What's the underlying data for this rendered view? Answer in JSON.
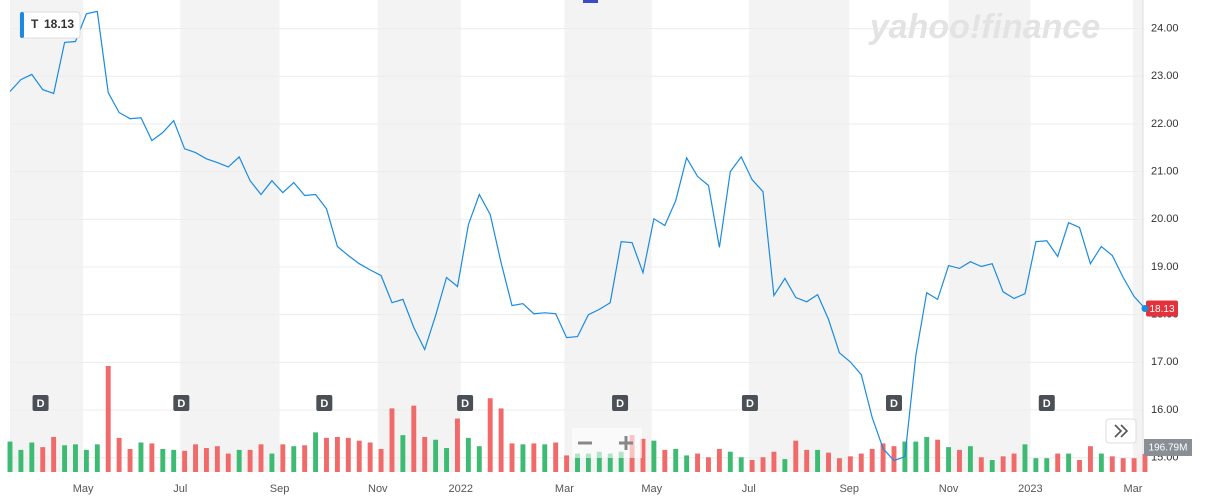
{
  "chart_data": {
    "type": "line",
    "watermark": "yahoo!finance",
    "series": [
      {
        "name": "T",
        "color": "#1a8be0",
        "values": [
          22.68,
          22.93,
          23.04,
          22.72,
          22.64,
          23.71,
          23.73,
          24.31,
          24.36,
          22.66,
          22.24,
          22.11,
          22.13,
          21.65,
          21.82,
          22.07,
          21.48,
          21.4,
          21.27,
          21.19,
          21.1,
          21.31,
          20.81,
          20.52,
          20.81,
          20.56,
          20.77,
          20.5,
          20.52,
          20.22,
          19.43,
          19.24,
          19.07,
          18.94,
          18.82,
          18.25,
          18.32,
          17.73,
          17.27,
          17.98,
          18.78,
          18.59,
          19.89,
          20.52,
          20.1,
          19.09,
          18.19,
          18.23,
          18.02,
          18.04,
          18.02,
          17.52,
          17.54,
          18.0,
          18.11,
          18.25,
          19.53,
          19.51,
          18.88,
          20.01,
          19.87,
          20.39,
          21.29,
          20.9,
          20.71,
          19.41,
          21.0,
          21.31,
          20.83,
          20.58,
          18.4,
          18.76,
          18.36,
          18.27,
          18.42,
          17.9,
          17.2,
          17.01,
          16.74,
          15.84,
          15.19,
          14.94,
          15.02,
          17.14,
          18.46,
          18.32,
          19.03,
          18.97,
          19.11,
          19.01,
          19.07,
          18.48,
          18.34,
          18.44,
          19.53,
          19.55,
          19.22,
          19.93,
          19.83,
          19.07,
          19.43,
          19.24,
          18.78,
          18.38,
          18.13
        ]
      }
    ],
    "volume": {
      "up_color": "#3dbb73",
      "down_color": "#f06a6a",
      "vlim": [
        0,
        1150
      ],
      "label": "196.79M",
      "values": [
        330,
        240,
        320,
        270,
        380,
        290,
        300,
        240,
        300,
        1150,
        370,
        250,
        320,
        310,
        250,
        240,
        230,
        300,
        260,
        280,
        200,
        240,
        240,
        300,
        200,
        300,
        280,
        290,
        430,
        370,
        380,
        370,
        340,
        320,
        250,
        690,
        400,
        720,
        380,
        350,
        260,
        580,
        370,
        280,
        800,
        690,
        310,
        300,
        310,
        300,
        320,
        180,
        200,
        200,
        220,
        200,
        220,
        400,
        360,
        340,
        240,
        250,
        180,
        200,
        160,
        250,
        220,
        160,
        130,
        160,
        220,
        140,
        340,
        240,
        240,
        210,
        150,
        170,
        200,
        250,
        310,
        280,
        330,
        330,
        380,
        350,
        270,
        240,
        280,
        160,
        130,
        170,
        200,
        300,
        150,
        150,
        200,
        200,
        130,
        280,
        200,
        170,
        150,
        150,
        196.79
      ]
    },
    "dividends": [
      {
        "x": 2.8,
        "label": "D"
      },
      {
        "x": 15.7,
        "label": "D"
      },
      {
        "x": 28.8,
        "label": "D"
      },
      {
        "x": 41.7,
        "label": "D"
      },
      {
        "x": 55.9,
        "label": "D"
      },
      {
        "x": 67.8,
        "label": "D"
      },
      {
        "x": 81.0,
        "label": "D"
      },
      {
        "x": 95.0,
        "label": "D"
      }
    ],
    "xlim": [
      0,
      104
    ],
    "xticks": [
      {
        "value": 6.7,
        "label": "May"
      },
      {
        "value": 15.6,
        "label": "Jul"
      },
      {
        "value": 24.7,
        "label": "Sep"
      },
      {
        "value": 33.7,
        "label": "Nov"
      },
      {
        "value": 41.3,
        "label": "2022"
      },
      {
        "value": 50.8,
        "label": "Mar"
      },
      {
        "value": 58.8,
        "label": "May"
      },
      {
        "value": 67.7,
        "label": "Jul"
      },
      {
        "value": 76.9,
        "label": "Sep"
      },
      {
        "value": 86.0,
        "label": "Nov"
      },
      {
        "value": 93.5,
        "label": "2023"
      },
      {
        "value": 102.9,
        "label": "Mar"
      }
    ],
    "ylim": [
      14.7,
      24.6
    ],
    "yticks": [
      {
        "value": 15,
        "label": "15.00"
      },
      {
        "value": 16,
        "label": "16.00"
      },
      {
        "value": 17,
        "label": "17.00"
      },
      {
        "value": 18,
        "label": "18.00"
      },
      {
        "value": 19,
        "label": "19.00"
      },
      {
        "value": 20,
        "label": "20.00"
      },
      {
        "value": 21,
        "label": "21.00"
      },
      {
        "value": 22,
        "label": "22.00"
      },
      {
        "value": 23,
        "label": "23.00"
      },
      {
        "value": 24,
        "label": "24.00"
      }
    ],
    "grid": true
  }
}
